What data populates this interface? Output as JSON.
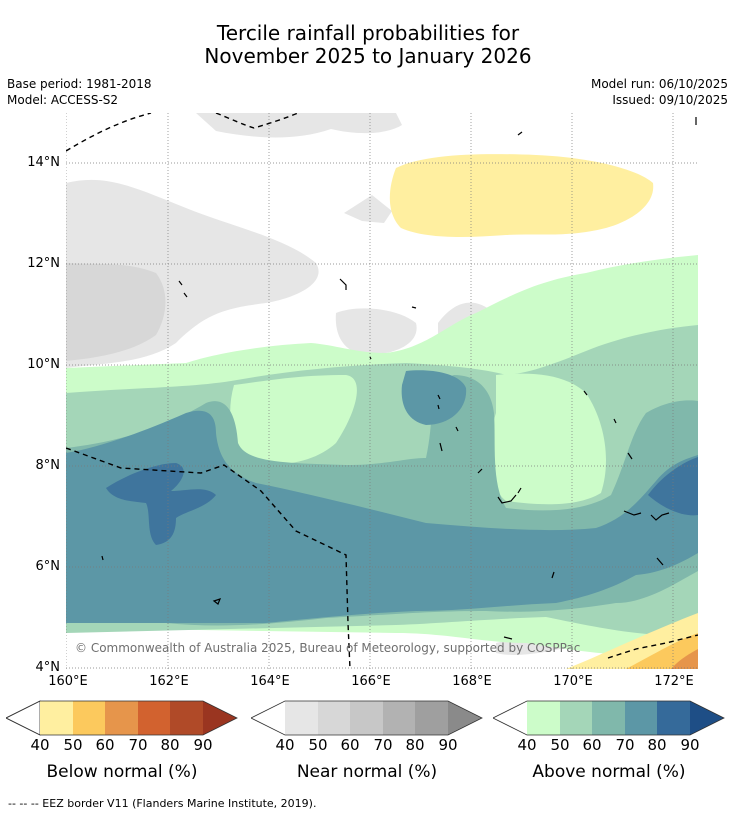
{
  "title_line1": "Tercile rainfall probabilities for",
  "title_line2": "November 2025 to January 2026",
  "base_period": "Base period: 1981-2018",
  "model": "Model: ACCESS-S2",
  "model_run": "Model run: 06/10/2025",
  "issued": "Issued: 09/10/2025",
  "copyright": "© Commonwealth of Australia 2025, Bureau of Meteorology, supported by COSPPac",
  "lat_labels": [
    "14°N",
    "12°N",
    "10°N",
    "8°N",
    "6°N",
    "4°N"
  ],
  "lon_labels": [
    "160°E",
    "162°E",
    "164°E",
    "166°E",
    "168°E",
    "170°E",
    "172°E"
  ],
  "colorbars": [
    {
      "title": "Below normal (%)",
      "ticks": [
        "40",
        "50",
        "60",
        "70",
        "80",
        "90"
      ],
      "colors": [
        "#ffefa0",
        "#fcc95d",
        "#e6954b",
        "#d2622f",
        "#b04a28",
        "#9a3520"
      ]
    },
    {
      "title": "Near normal (%)",
      "ticks": [
        "40",
        "50",
        "60",
        "70",
        "80",
        "90"
      ],
      "colors": [
        "#e6e6e6",
        "#d7d7d7",
        "#c7c7c7",
        "#b2b2b2",
        "#9f9f9f",
        "#8a8a8a"
      ]
    },
    {
      "title": "Above normal (%)",
      "ticks": [
        "40",
        "50",
        "60",
        "70",
        "80",
        "90"
      ],
      "colors": [
        "#ccfcc9",
        "#a4d6b8",
        "#80b8ab",
        "#5c97a6",
        "#356a9a",
        "#1e4e86"
      ]
    }
  ],
  "footnote": "--  --  -- EEZ border V11 (Flanders Marine Institute, 2019)."
}
